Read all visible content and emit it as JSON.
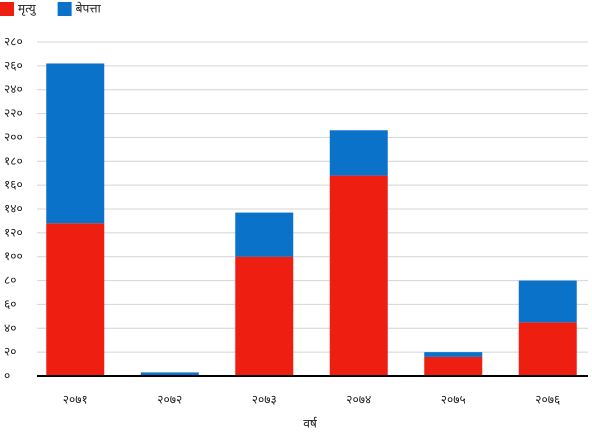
{
  "chart_data": {
    "type": "stacked_bar",
    "xlabel": "वर्ष",
    "categories": [
      "२०७१",
      "२०७२",
      "२०७३",
      "२०७४",
      "२०७५",
      "२०७६"
    ],
    "series": [
      {
        "name": "मृत्यु",
        "color": "#ee1f10",
        "values": [
          128,
          0,
          100,
          168,
          16,
          45
        ]
      },
      {
        "name": "बेपत्ता",
        "color": "#0a72c9",
        "values": [
          134,
          3,
          37,
          38,
          4,
          35
        ]
      }
    ],
    "ylim": [
      0,
      280
    ],
    "yticks": [
      {
        "value": 0,
        "label": "०"
      },
      {
        "value": 20,
        "label": "२०"
      },
      {
        "value": 40,
        "label": "४०"
      },
      {
        "value": 60,
        "label": "६०"
      },
      {
        "value": 80,
        "label": "८०"
      },
      {
        "value": 100,
        "label": "१००"
      },
      {
        "value": 120,
        "label": "१२०"
      },
      {
        "value": 140,
        "label": "१४०"
      },
      {
        "value": 160,
        "label": "१६०"
      },
      {
        "value": 180,
        "label": "१८०"
      },
      {
        "value": 200,
        "label": "२००"
      },
      {
        "value": 220,
        "label": "२२०"
      },
      {
        "value": 240,
        "label": "२४०"
      },
      {
        "value": 260,
        "label": "२६०"
      },
      {
        "value": 280,
        "label": "२८०"
      }
    ],
    "grid": true,
    "legend": "top-left"
  }
}
